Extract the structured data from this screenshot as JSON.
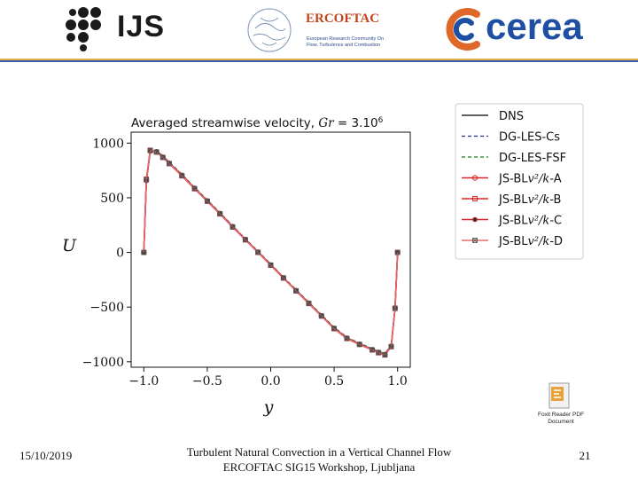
{
  "header": {
    "ijs_logo_text": "IJS",
    "ercoftac_logo_title": "ERCOFTAC",
    "ercoftac_tagline": [
      "European Research Community On",
      "Flow, Turbulence and Combustion"
    ],
    "cerea_logo_text": "cerea"
  },
  "colors": {
    "divider_top": "#e0b04a",
    "divider_bottom": "#3a5ea8",
    "ercoftac_red": "#c2441c",
    "cerea_blue": "#1e4fa3"
  },
  "chart_data": {
    "type": "line",
    "title": "Averaged streamwise velocity, Gr = 3.10^6",
    "title_main": "Averaged streamwise velocity, ",
    "title_math": "Gr",
    "title_eq": " = 3.10",
    "title_exp": "6",
    "xlabel": "y",
    "ylabel": "U",
    "xlim": [
      -1.1,
      1.1
    ],
    "ylim": [
      -1050,
      1100
    ],
    "xticks": [
      -1.0,
      -0.5,
      0.0,
      0.5,
      1.0
    ],
    "xtick_labels": [
      "−1.0",
      "−0.5",
      "0.0",
      "0.5",
      "1.0"
    ],
    "yticks": [
      1000,
      500,
      0,
      -500,
      -1000
    ],
    "ytick_labels": [
      "1000",
      "500",
      "0",
      "−500",
      "−1000"
    ],
    "grid": false,
    "legend_position": "top-right",
    "x": [
      -1.0,
      -0.98,
      -0.95,
      -0.9,
      -0.85,
      -0.8,
      -0.7,
      -0.6,
      -0.5,
      -0.4,
      -0.3,
      -0.2,
      -0.1,
      0.0,
      0.1,
      0.2,
      0.3,
      0.4,
      0.5,
      0.6,
      0.7,
      0.8,
      0.85,
      0.9,
      0.95,
      0.98,
      1.0
    ],
    "series": [
      {
        "name": "DNS",
        "label_text": "DNS",
        "color": "#000000",
        "dash": "solid",
        "marker": "none",
        "values": [
          0,
          650,
          920,
          930,
          880,
          820,
          710,
          590,
          475,
          360,
          240,
          120,
          5,
          -110,
          -230,
          -345,
          -460,
          -575,
          -690,
          -780,
          -835,
          -885,
          -910,
          -930,
          -850,
          -500,
          0
        ]
      },
      {
        "name": "DG-LES-Cs",
        "label_text": "DG-LES-Cs",
        "color": "#1f2f8f",
        "dash": "4 3",
        "marker": "none",
        "values": [
          0,
          640,
          910,
          925,
          885,
          825,
          715,
          595,
          480,
          365,
          245,
          125,
          10,
          -105,
          -225,
          -340,
          -455,
          -570,
          -685,
          -775,
          -830,
          -880,
          -905,
          -925,
          -845,
          -495,
          0
        ]
      },
      {
        "name": "DG-LES-FSF",
        "label_text": "DG-LES-FSF",
        "color": "#1a7a1a",
        "dash": "4 3",
        "marker": "none",
        "values": [
          0,
          645,
          915,
          928,
          882,
          822,
          712,
          592,
          478,
          362,
          242,
          122,
          8,
          -108,
          -228,
          -342,
          -458,
          -572,
          -688,
          -778,
          -832,
          -882,
          -908,
          -928,
          -848,
          -498,
          0
        ]
      },
      {
        "name": "JS-BLv^2/k-A",
        "label_text": "JS-BL",
        "label_math": "v²/k",
        "label_suffix": "-A",
        "color": "#d62728",
        "dash": "solid",
        "marker": "circle",
        "values": [
          0,
          660,
          930,
          920,
          870,
          815,
          705,
          585,
          470,
          355,
          235,
          118,
          2,
          -115,
          -232,
          -350,
          -465,
          -580,
          -695,
          -785,
          -840,
          -890,
          -915,
          -935,
          -860,
          -510,
          0
        ]
      },
      {
        "name": "JS-BLv^2/k-B",
        "label_text": "JS-BL",
        "label_math": "v²/k",
        "label_suffix": "-B",
        "color": "#d62728",
        "dash": "solid",
        "marker": "square",
        "values": [
          0,
          670,
          935,
          918,
          868,
          812,
          700,
          582,
          468,
          352,
          232,
          115,
          0,
          -118,
          -235,
          -352,
          -468,
          -582,
          -698,
          -788,
          -842,
          -892,
          -918,
          -938,
          -862,
          -512,
          0
        ]
      },
      {
        "name": "JS-BLv^2/k-C",
        "label_text": "JS-BL",
        "label_math": "v²/k",
        "label_suffix": "-C",
        "color": "#d62728",
        "dash": "solid",
        "marker": "dot",
        "values": [
          0,
          655,
          925,
          922,
          872,
          818,
          708,
          588,
          472,
          358,
          238,
          120,
          4,
          -112,
          -230,
          -348,
          -462,
          -578,
          -692,
          -782,
          -838,
          -888,
          -912,
          -932,
          -855,
          -505,
          0
        ]
      },
      {
        "name": "JS-BLv^2/k-D",
        "label_text": "JS-BL",
        "label_math": "v²/k",
        "label_suffix": "-D",
        "color": "#e06a6a",
        "dash": "solid",
        "marker": "square-x",
        "values": [
          0,
          665,
          932,
          919,
          869,
          813,
          702,
          584,
          469,
          354,
          234,
          116,
          1,
          -116,
          -233,
          -351,
          -466,
          -581,
          -696,
          -786,
          -841,
          -891,
          -916,
          -936,
          -861,
          -511,
          0
        ]
      }
    ]
  },
  "pdf_icon": {
    "label_line1": "Foxit Reader PDF",
    "label_line2": "Document"
  },
  "footer": {
    "date": "15/10/2019",
    "title_line1": "Turbulent Natural Convection in a Vertical Channel Flow",
    "title_line2": "ERCOFTAC SIG15 Workshop, Ljubljana",
    "page_number": "21"
  }
}
